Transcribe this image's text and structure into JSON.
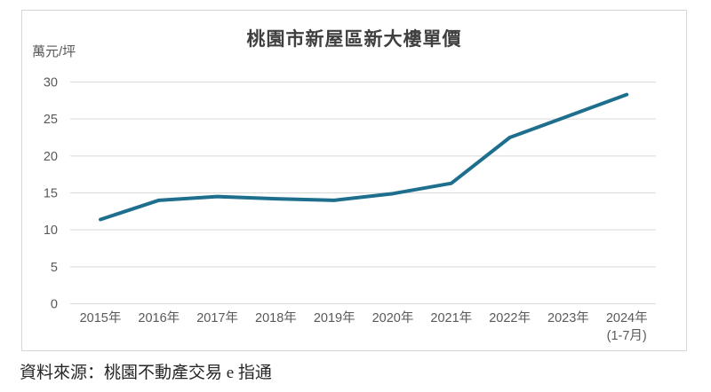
{
  "page": {
    "source_note": "資料來源：桃園不動產交易 e 指通"
  },
  "chart_data": {
    "type": "line",
    "title": "桃園市新屋區新大樓單價",
    "xlabel": "",
    "ylabel": "萬元/坪",
    "categories": [
      "2015年",
      "2016年",
      "2017年",
      "2018年",
      "2019年",
      "2020年",
      "2021年",
      "2022年",
      "2023年",
      "2024年"
    ],
    "category_sublabels": [
      "",
      "",
      "",
      "",
      "",
      "",
      "",
      "",
      "",
      "(1-7月)"
    ],
    "values": [
      11.4,
      14.0,
      14.5,
      14.2,
      14.0,
      14.9,
      16.3,
      22.5,
      25.4,
      28.3
    ],
    "ylim": [
      0,
      30
    ],
    "yticks": [
      0,
      5,
      10,
      15,
      20,
      25,
      30
    ],
    "grid": true,
    "legend": "none",
    "line_color": "#1e6f8e",
    "axis_label_color": "#595959",
    "title_color": "#3f3f3f",
    "gridline_color": "#d9d9d9",
    "frame_border_color": "#d6d6d6"
  }
}
